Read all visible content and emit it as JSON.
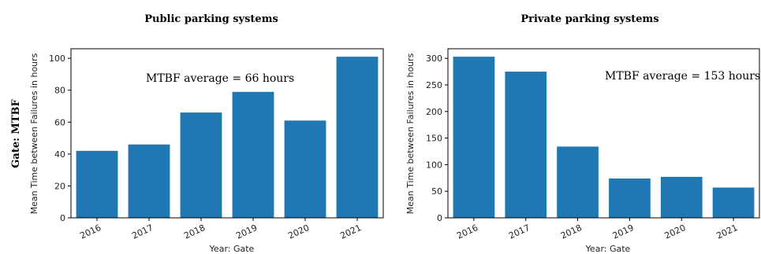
{
  "row_label": "Gate: MTBF",
  "chart_data": [
    {
      "type": "bar",
      "title": "Public parking systems",
      "annotation": "MTBF average = 66 hours",
      "xlabel": "Year: Gate",
      "ylabel": "Mean Time between Failures in hours",
      "categories": [
        "2016",
        "2017",
        "2018",
        "2019",
        "2020",
        "2021"
      ],
      "values": [
        42,
        46,
        66,
        79,
        61,
        101
      ],
      "ylim": [
        0,
        106
      ],
      "yticks": [
        0,
        20,
        40,
        60,
        80,
        100
      ],
      "bar_color": "#1f77b4",
      "grid": false
    },
    {
      "type": "bar",
      "title": "Private parking systems",
      "annotation": "MTBF average = 153 hours",
      "xlabel": "Year: Gate",
      "ylabel": "Mean Time between Failures in hours",
      "categories": [
        "2016",
        "2017",
        "2018",
        "2019",
        "2020",
        "2021"
      ],
      "values": [
        303,
        275,
        134,
        74,
        77,
        57
      ],
      "ylim": [
        0,
        318
      ],
      "yticks": [
        0,
        50,
        100,
        150,
        200,
        250,
        300
      ],
      "bar_color": "#1f77b4",
      "grid": false
    }
  ]
}
